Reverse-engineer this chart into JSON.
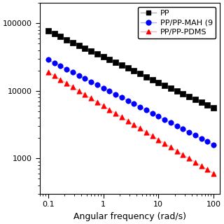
{
  "xlabel": "Angular frequency (rad/s)",
  "legend_labels": [
    "PP",
    "PP/PP-MAH (9",
    "PP/PP-PDMS"
  ],
  "series": [
    {
      "name": "PP",
      "color": "black",
      "marker": "s",
      "line_color": "#aaaaaa",
      "a": 32000,
      "b": -0.38
    },
    {
      "name": "PP/PP-MAH (9",
      "color": "blue",
      "marker": "o",
      "line_color": "#aaaaff",
      "a": 11000,
      "b": -0.42
    },
    {
      "name": "PP/PP-PDMS",
      "color": "red",
      "marker": "^",
      "line_color": "#ffaaaa",
      "a": 6000,
      "b": -0.5
    }
  ],
  "x_start": 0.1,
  "x_end": 100,
  "n_pts": 28,
  "figsize": [
    3.2,
    3.2
  ],
  "dpi": 100,
  "ylim": [
    300,
    200000
  ],
  "xlim": [
    0.07,
    130
  ],
  "yticks": [
    1000,
    10000,
    100000
  ],
  "ytick_labels": [
    "1000",
    "10000",
    "100000"
  ],
  "legend_loc": "upper right",
  "legend_fontsize": 8,
  "axis_fontsize": 9,
  "tick_labelsize": 8,
  "marker_size": 28,
  "line_width": 0.9
}
